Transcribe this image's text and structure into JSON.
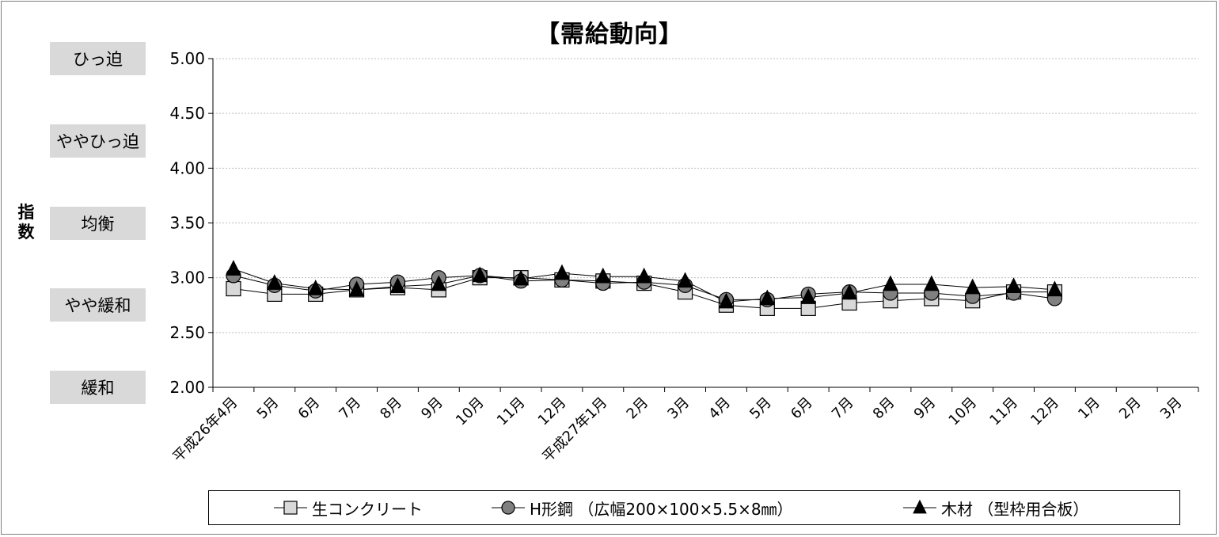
{
  "title": "【需給動向】",
  "bands": [
    {
      "label": "ひっ迫",
      "value": 5.0
    },
    {
      "label": "ややひっ迫",
      "value": 4.25
    },
    {
      "label": "均衡",
      "value": 3.5
    },
    {
      "label": "やや緩和",
      "value": 2.75
    },
    {
      "label": "緩和",
      "value": 2.0
    }
  ],
  "ylabel_chars": [
    "指",
    "数"
  ],
  "chart_data": {
    "type": "line",
    "title": "【需給動向】",
    "ylabel": "指数",
    "ylim": [
      2.0,
      5.0
    ],
    "yticks": [
      "5.00",
      "4.50",
      "4.00",
      "3.50",
      "3.00",
      "2.50",
      "2.00"
    ],
    "ytick_values": [
      5.0,
      4.5,
      4.0,
      3.5,
      3.0,
      2.5,
      2.0
    ],
    "grid": true,
    "legend_position": "bottom",
    "categories": [
      "平成26年4月",
      "5月",
      "6月",
      "7月",
      "8月",
      "9月",
      "10月",
      "11月",
      "12月",
      "平成27年1月",
      "2月",
      "3月",
      "4月",
      "5月",
      "6月",
      "7月",
      "8月",
      "9月",
      "10月",
      "11月",
      "12月",
      "1月",
      "2月",
      "3月"
    ],
    "series": [
      {
        "name": "生コンクリート",
        "marker": "square",
        "fill": "#d9d9d9",
        "values": [
          2.9,
          2.85,
          2.85,
          2.89,
          2.91,
          2.89,
          3.0,
          3.0,
          2.98,
          2.97,
          2.95,
          2.87,
          2.75,
          2.72,
          2.72,
          2.77,
          2.79,
          2.81,
          2.79,
          2.87,
          2.87,
          null,
          null,
          null
        ]
      },
      {
        "name": "H形鋼 （広幅200×100×5.5×8㎜）",
        "marker": "circle",
        "fill": "#808080",
        "values": [
          3.02,
          2.93,
          2.88,
          2.94,
          2.96,
          3.0,
          3.02,
          2.97,
          2.98,
          2.95,
          2.96,
          2.93,
          2.8,
          2.8,
          2.85,
          2.87,
          2.86,
          2.86,
          2.83,
          2.86,
          2.81,
          null,
          null,
          null
        ]
      },
      {
        "name": "木材 （型枠用合板）",
        "marker": "triangle",
        "fill": "#000000",
        "values": [
          3.08,
          2.95,
          2.9,
          2.89,
          2.92,
          2.94,
          3.02,
          2.99,
          3.04,
          3.01,
          3.01,
          2.97,
          2.78,
          2.81,
          2.82,
          2.86,
          2.94,
          2.94,
          2.91,
          2.92,
          2.89,
          null,
          null,
          null
        ]
      }
    ]
  },
  "colors": {
    "band_bg": "#d9d9d9",
    "grid": "#bfbfbf",
    "frame": "#7f7f7f"
  }
}
